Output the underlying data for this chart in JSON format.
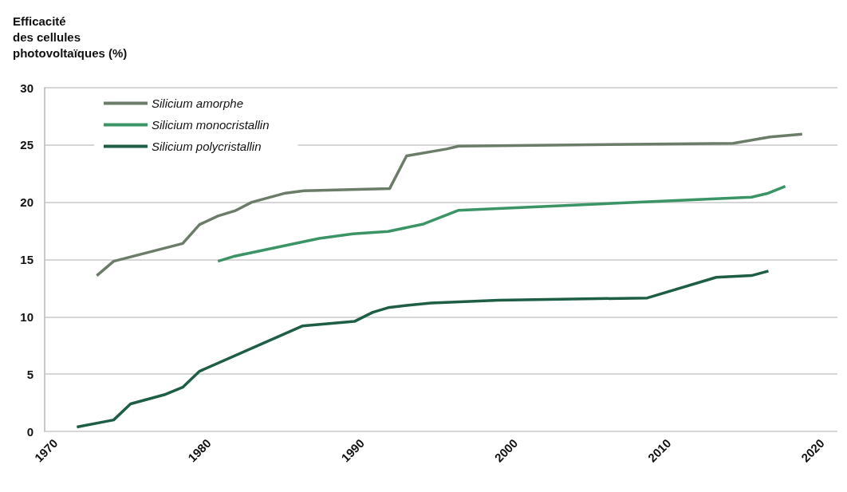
{
  "chart_data": {
    "type": "line",
    "ylabel": "Efficacité\ndes cellules\nphotovoltaïques (%)",
    "xlim": [
      1969.3,
      2021
    ],
    "xticks": [
      1970,
      1980,
      1990,
      2000,
      2010,
      2020
    ],
    "ylim": [
      0,
      30
    ],
    "yticks": [
      0,
      5,
      10,
      15,
      20,
      25,
      30
    ],
    "grid": "y",
    "legend": "top left",
    "marker": "none",
    "line_style": "solid",
    "series": [
      {
        "name": "Silicium amorphe",
        "color": "#6b7d68",
        "x": [
          1972.7,
          1973.8,
          1978.3,
          1979.4,
          1980.6,
          1981.7,
          1982.8,
          1985.0,
          1986.2,
          1991.8,
          1992.9,
          1995.5,
          1996.3,
          2014.2,
          2016.6,
          2018.7
        ],
        "values": [
          13.6,
          14.85,
          16.4,
          18.05,
          18.8,
          19.25,
          20.0,
          20.8,
          21.0,
          21.2,
          24.05,
          24.65,
          24.9,
          25.15,
          25.7,
          25.95
        ]
      },
      {
        "name": "Silicium monocristallin",
        "color": "#3a9465",
        "x": [
          1980.6,
          1981.7,
          1987.2,
          1989.4,
          1991.7,
          1994.0,
          1996.3,
          2015.4,
          2016.5,
          2017.6
        ],
        "values": [
          14.85,
          15.3,
          16.85,
          17.25,
          17.45,
          18.1,
          19.3,
          20.45,
          20.8,
          21.4
        ]
      },
      {
        "name": "Silicium polycristallin",
        "color": "#1d5e45",
        "x": [
          1971.4,
          1973.8,
          1974.9,
          1977.1,
          1978.3,
          1979.4,
          1986.1,
          1989.5,
          1990.7,
          1991.7,
          1992.9,
          1994.5,
          1998.9,
          2008.6,
          2013.1,
          2015.4,
          2016.5
        ],
        "values": [
          0.38,
          1.0,
          2.4,
          3.2,
          3.85,
          5.25,
          9.2,
          9.6,
          10.4,
          10.8,
          11.0,
          11.2,
          11.45,
          11.65,
          13.45,
          13.6,
          14.0
        ]
      }
    ]
  }
}
